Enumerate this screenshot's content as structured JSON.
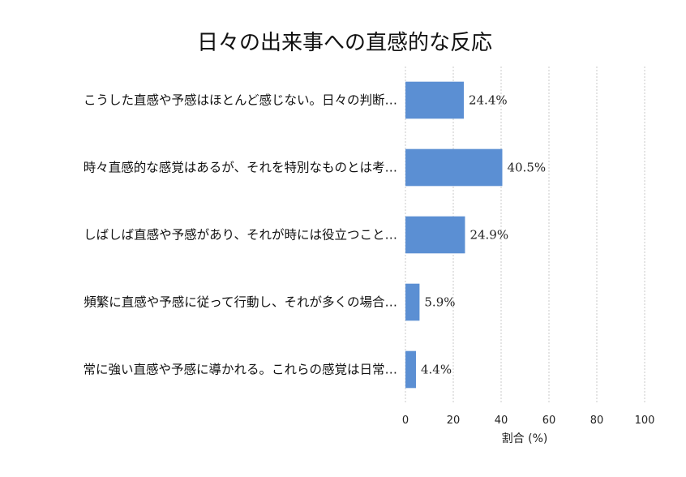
{
  "chart_data": {
    "type": "bar",
    "orientation": "horizontal",
    "title": "日々の出来事への直感的な反応",
    "xlabel": "割合 (%)",
    "ylabel": "",
    "xlim": [
      0,
      100
    ],
    "xticks": [
      0,
      20,
      40,
      60,
      80,
      100
    ],
    "grid": "vertical dashed",
    "bar_color": "#5b8fd3",
    "categories": [
      "こうした直感や予感はほとんど感じない。日々の判断…",
      "時々直感的な感覚はあるが、それを特別なものとは考…",
      "しばしば直感や予感があり、それが時には役立つこと…",
      "頻繁に直感や予感に従って行動し、それが多くの場合…",
      "常に強い直感や予感に導かれる。これらの感覚は日常…"
    ],
    "values": [
      24.4,
      40.5,
      24.9,
      5.9,
      4.4
    ],
    "value_labels": [
      "24.4%",
      "40.5%",
      "24.9%",
      "5.9%",
      "4.4%"
    ]
  }
}
